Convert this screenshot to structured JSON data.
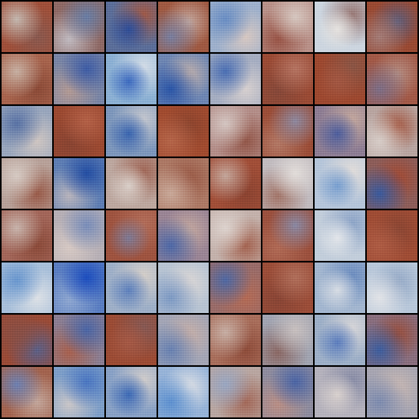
{
  "tiles": [
    {
      "base": "#a0503a",
      "blobs": [
        "#c4b8b0",
        "#8a5a50"
      ]
    },
    {
      "base": "#8f6a66",
      "blobs": [
        "#6a7fa6",
        "#c0bac0"
      ]
    },
    {
      "base": "#5c6f9a",
      "blobs": [
        "#2f4f9a",
        "#a05a48"
      ]
    },
    {
      "base": "#a05a42",
      "blobs": [
        "#7a80a0",
        "#c4a9a0"
      ]
    },
    {
      "base": "#9fb1cc",
      "blobs": [
        "#6b8fc4",
        "#d7c8c2"
      ]
    },
    {
      "base": "#b9928a",
      "blobs": [
        "#d6c7c0",
        "#9a5648"
      ]
    },
    {
      "base": "#cdd6e0",
      "blobs": [
        "#e6e3e0",
        "#9a7b78"
      ]
    },
    {
      "base": "#9a4a33",
      "blobs": [
        "#a47d78",
        "#5e5f7d"
      ]
    },
    {
      "base": "#a8654e",
      "blobs": [
        "#c7b0a3",
        "#8c4b38"
      ]
    },
    {
      "base": "#7a86a6",
      "blobs": [
        "#3f5ea6",
        "#b29a95"
      ]
    },
    {
      "base": "#8db1d4",
      "blobs": [
        "#3d6cc0",
        "#d3dce6"
      ]
    },
    {
      "base": "#6f87b3",
      "blobs": [
        "#2c57a8",
        "#c1b1ac"
      ]
    },
    {
      "base": "#a6aec2",
      "blobs": [
        "#4b70b4",
        "#d7d0cf"
      ]
    },
    {
      "base": "#9b4b35",
      "blobs": [
        "#b57563",
        "#87493a"
      ]
    },
    {
      "base": "#9e4930",
      "blobs": [
        "#a35843",
        "#8b5646"
      ]
    },
    {
      "base": "#a35a48",
      "blobs": [
        "#7e6f88",
        "#b48f84"
      ]
    },
    {
      "base": "#9aa7bd",
      "blobs": [
        "#5a74a6",
        "#cfc6c2"
      ]
    },
    {
      "base": "#9c4a32",
      "blobs": [
        "#b46248",
        "#8a4533"
      ]
    },
    {
      "base": "#7f98bc",
      "blobs": [
        "#3a66b0",
        "#c3c6ce"
      ]
    },
    {
      "base": "#a24c30",
      "blobs": [
        "#b5664a",
        "#8c452f"
      ]
    },
    {
      "base": "#b48f8a",
      "blobs": [
        "#d4c6c2",
        "#94584a"
      ]
    },
    {
      "base": "#9c4e38",
      "blobs": [
        "#8f8aa0",
        "#b37966"
      ]
    },
    {
      "base": "#8f7f95",
      "blobs": [
        "#4e5f9e",
        "#c2a79e"
      ]
    },
    {
      "base": "#b9a6a2",
      "blobs": [
        "#d7cdc8",
        "#a55a44"
      ]
    },
    {
      "base": "#b8a29a",
      "blobs": [
        "#d6cac3",
        "#9a5c4a"
      ]
    },
    {
      "base": "#5f7fb4",
      "blobs": [
        "#244fa4",
        "#b8b4bc"
      ]
    },
    {
      "base": "#bda8a0",
      "blobs": [
        "#dad0ca",
        "#a26a5a"
      ]
    },
    {
      "base": "#ad7a66",
      "blobs": [
        "#c9a99a",
        "#9a5a46"
      ]
    },
    {
      "base": "#a24f38",
      "blobs": [
        "#c4a79c",
        "#8c4432"
      ]
    },
    {
      "base": "#c2bcc0",
      "blobs": [
        "#e2ddda",
        "#a4786c"
      ]
    },
    {
      "base": "#b6c6da",
      "blobs": [
        "#7aa0d0",
        "#e0dcda"
      ]
    },
    {
      "base": "#8e5e5a",
      "blobs": [
        "#3b5b9e",
        "#a44a32"
      ]
    },
    {
      "base": "#a3675a",
      "blobs": [
        "#c8b4ac",
        "#8c4b3a"
      ]
    },
    {
      "base": "#b7b0b6",
      "blobs": [
        "#7b8fba",
        "#d6c9c4"
      ]
    },
    {
      "base": "#9f5440",
      "blobs": [
        "#7f7b96",
        "#b26e5a"
      ]
    },
    {
      "base": "#9b8696",
      "blobs": [
        "#4f6aa8",
        "#c6aaa0"
      ]
    },
    {
      "base": "#c4b2ac",
      "blobs": [
        "#ddd3ce",
        "#a56552"
      ]
    },
    {
      "base": "#9c513e",
      "blobs": [
        "#8b8aa4",
        "#b06b56"
      ]
    },
    {
      "base": "#c3cedb",
      "blobs": [
        "#e3e6ea",
        "#8fa6c8"
      ]
    },
    {
      "base": "#a04d35",
      "blobs": [
        "#ae5d45",
        "#8a4634"
      ]
    },
    {
      "base": "#a9c0da",
      "blobs": [
        "#6b98cf",
        "#dde1e6"
      ]
    },
    {
      "base": "#5b7fc2",
      "blobs": [
        "#1d4fbf",
        "#8fa7d0"
      ]
    },
    {
      "base": "#9fb0c8",
      "blobs": [
        "#5f82bd",
        "#d4cec9"
      ]
    },
    {
      "base": "#b8c4d3",
      "blobs": [
        "#7f9bc4",
        "#ddd8d6"
      ]
    },
    {
      "base": "#9a6d6a",
      "blobs": [
        "#506aa4",
        "#b46c56"
      ]
    },
    {
      "base": "#9c4e39",
      "blobs": [
        "#b0705c",
        "#8a4636"
      ]
    },
    {
      "base": "#a4b7d0",
      "blobs": [
        "#d8dde4",
        "#6f8fc0"
      ]
    },
    {
      "base": "#b9c8da",
      "blobs": [
        "#e1e3e7",
        "#95a9c6"
      ]
    },
    {
      "base": "#9a4b37",
      "blobs": [
        "#8a5046",
        "#5c6189"
      ]
    },
    {
      "base": "#8c7f93",
      "blobs": [
        "#4c67a6",
        "#a86250"
      ]
    },
    {
      "base": "#9c4c35",
      "blobs": [
        "#a65a46",
        "#875a55"
      ]
    },
    {
      "base": "#a4a6b6",
      "blobs": [
        "#6a83b2",
        "#c8b0a8"
      ]
    },
    {
      "base": "#a96f5c",
      "blobs": [
        "#c7afa5",
        "#8f4d3b"
      ]
    },
    {
      "base": "#a2a5b2",
      "blobs": [
        "#c8c0bf",
        "#8c6a66"
      ]
    },
    {
      "base": "#9eb0c8",
      "blobs": [
        "#5d7fbe",
        "#d6d5d8"
      ]
    },
    {
      "base": "#8a6f7f",
      "blobs": [
        "#3e5f9f",
        "#9b4e3a"
      ]
    },
    {
      "base": "#a3644f",
      "blobs": [
        "#6f82b2",
        "#c3a79c"
      ]
    },
    {
      "base": "#7f9fc8",
      "blobs": [
        "#4b78c2",
        "#c9c6c8"
      ]
    },
    {
      "base": "#8aa2c6",
      "blobs": [
        "#3d6bb6",
        "#d0cccb"
      ]
    },
    {
      "base": "#98b4d8",
      "blobs": [
        "#5f92d0",
        "#dfe1e5"
      ]
    },
    {
      "base": "#b9a7a2",
      "blobs": [
        "#9aa7c2",
        "#a46a5a"
      ]
    },
    {
      "base": "#8f8d9f",
      "blobs": [
        "#4c66a6",
        "#b98f86"
      ]
    },
    {
      "base": "#b6b3bd",
      "blobs": [
        "#d9d1ce",
        "#8b8fa8"
      ]
    },
    {
      "base": "#a8a6b2",
      "blobs": [
        "#7f8db0",
        "#c8b8b3"
      ]
    }
  ]
}
